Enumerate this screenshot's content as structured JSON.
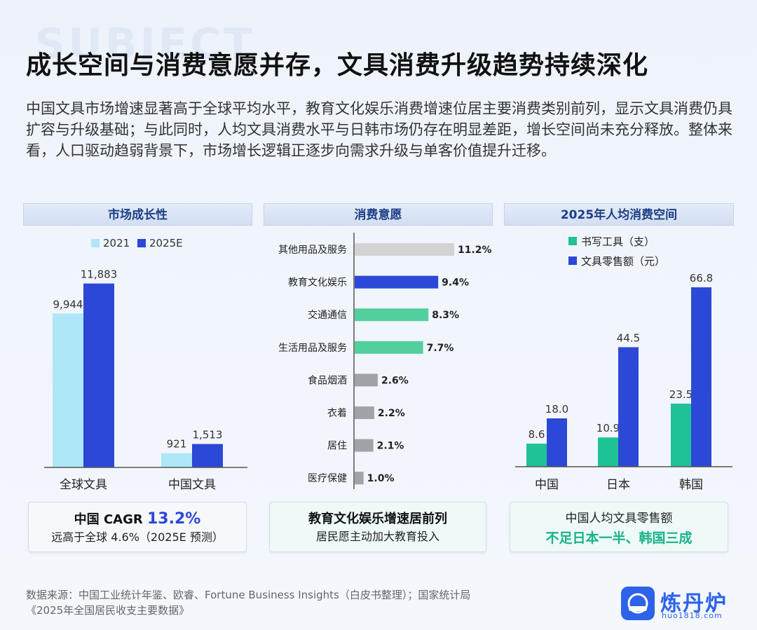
{
  "title": "成长空间与消费意愿并存，文具消费升级趋势持续深化",
  "description": "中国文具市场增速显著高于全球平均水平，教育文化娱乐消费增速位居主要消费类别前列，显示文具消费仍具扩容与升级基础；与此同时，人均文具消费水平与日韩市场仍存在明显差距，增长空间尚未充分释放。整体来看，人口驱动趋弱背景下，市场增长逻辑正逐步向需求升级与单客价值提升迁移。",
  "watermark": "SUBJECT",
  "panels": {
    "growth": {
      "header": "市场成长性",
      "summary_line1_prefix": "中国 CAGR ",
      "summary_line1_value": "13.2%",
      "summary_line2": "远高于全球 4.6%（2025E 预测）"
    },
    "willingness": {
      "header": "消费意愿",
      "summary_line1": "教育文化娱乐增速居前列",
      "summary_line2": "居民愿主动加大教育投入"
    },
    "percapita": {
      "header": "2025年人均消费空间",
      "summary_line1": "中国人均文具零售额",
      "summary_line2": "不足日本一半、韩国三成"
    }
  },
  "chart_data": [
    {
      "type": "bar",
      "categories": [
        "全球文具",
        "中国文具"
      ],
      "series": [
        {
          "name": "2021",
          "values": [
            9944,
            921
          ],
          "labels": [
            "9,944",
            "921"
          ],
          "color": "#aee7f7"
        },
        {
          "name": "2025E",
          "values": [
            11883,
            1513
          ],
          "labels": [
            "11,883",
            "1,513"
          ],
          "color": "#2c48d6"
        }
      ],
      "ylim": [
        0,
        12000
      ],
      "grid": false,
      "legend": "top"
    },
    {
      "type": "bar",
      "orientation": "horizontal",
      "categories": [
        "其他用品及服务",
        "教育文化娱乐",
        "交通通信",
        "生活用品及服务",
        "食品烟酒",
        "衣着",
        "居住",
        "医疗保健"
      ],
      "values": [
        11.2,
        9.4,
        8.3,
        7.7,
        2.6,
        2.2,
        2.1,
        1.0
      ],
      "labels": [
        "11.2%",
        "9.4%",
        "8.3%",
        "7.7%",
        "2.6%",
        "2.2%",
        "2.1%",
        "1.0%"
      ],
      "colors": [
        "#d3d3d3",
        "#2c48d6",
        "#52cf9d",
        "#52cf9d",
        "#a0a3a8",
        "#a0a3a8",
        "#a0a3a8",
        "#a0a3a8"
      ],
      "xlim": [
        0,
        12
      ],
      "grid": false
    },
    {
      "type": "bar",
      "categories": [
        "中国",
        "日本",
        "韩国"
      ],
      "series": [
        {
          "name": "书写工具（支）",
          "values": [
            8.6,
            10.9,
            23.5
          ],
          "labels": [
            "8.6",
            "10.9",
            "23.5"
          ],
          "color": "#1fc295"
        },
        {
          "name": "文具零售额（元）",
          "values": [
            18.0,
            44.5,
            66.8
          ],
          "labels": [
            "18.0",
            "44.5",
            "66.8"
          ],
          "color": "#2c48d6"
        }
      ],
      "ylim": [
        0,
        70
      ],
      "grid": false,
      "legend": "top-left"
    }
  ],
  "source_line1": "数据来源：中国工业统计年鉴、欧睿、Fortune Business Insights（白皮书整理）；国家统计局",
  "source_line2": "《2025年全国居民收支主要数据》",
  "logo": {
    "name": "炼丹炉",
    "url": "huo1818.com",
    "brand_color": "#2d63e8"
  }
}
